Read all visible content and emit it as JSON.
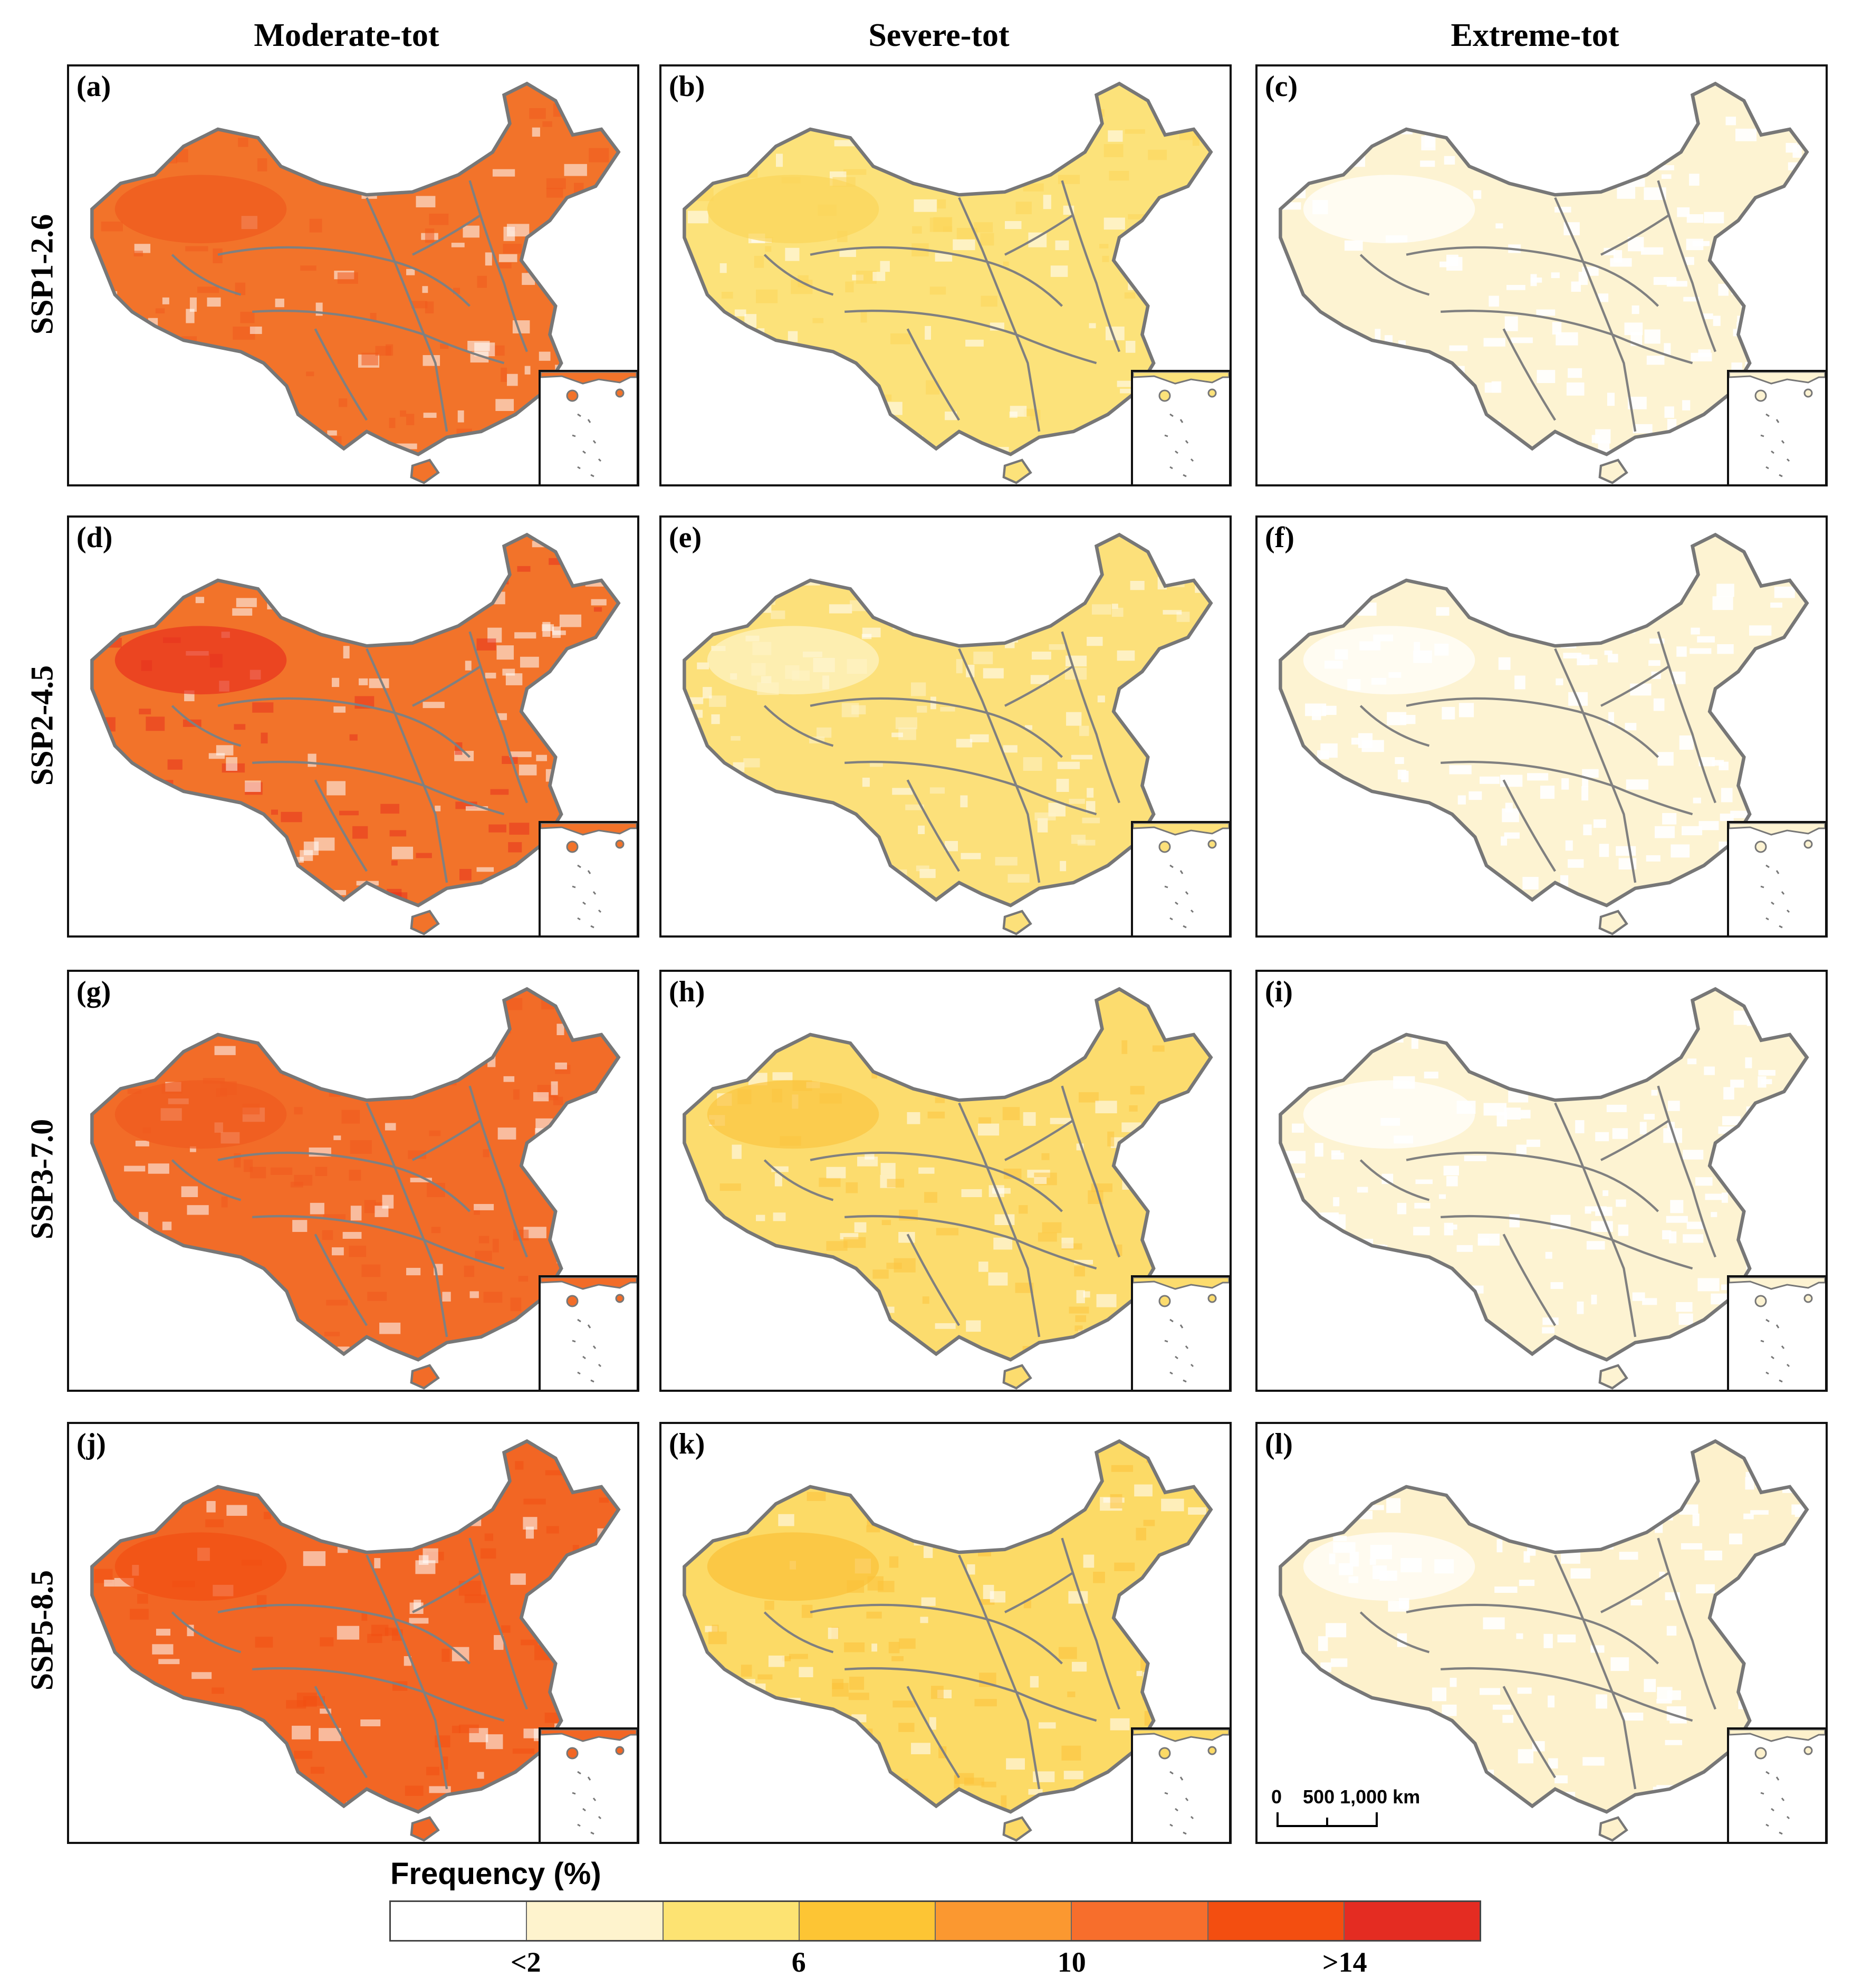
{
  "columns": [
    "Moderate-tot",
    "Severe-tot",
    "Extreme-tot"
  ],
  "rows": [
    "SSP1-2.6",
    "SSP2-4.5",
    "SSP3-7.0",
    "SSP5-8.5"
  ],
  "panels": [
    {
      "label": "(a)",
      "row": 0,
      "col": 0,
      "fill": "#f2732a",
      "hot": "#f05a1e"
    },
    {
      "label": "(b)",
      "row": 0,
      "col": 1,
      "fill": "#fce27a",
      "hot": "#fbd65a"
    },
    {
      "label": "(c)",
      "row": 0,
      "col": 2,
      "fill": "#fdf3d2",
      "hot": "#ffffff"
    },
    {
      "label": "(d)",
      "row": 1,
      "col": 0,
      "fill": "#f2732a",
      "hot": "#e8321e"
    },
    {
      "label": "(e)",
      "row": 1,
      "col": 1,
      "fill": "#fce07a",
      "hot": "#fef3c8"
    },
    {
      "label": "(f)",
      "row": 1,
      "col": 2,
      "fill": "#fdf3d2",
      "hot": "#ffffff"
    },
    {
      "label": "(g)",
      "row": 2,
      "col": 0,
      "fill": "#f26c28",
      "hot": "#f05a1e"
    },
    {
      "label": "(h)",
      "row": 2,
      "col": 1,
      "fill": "#fcdc6e",
      "hot": "#fbc440"
    },
    {
      "label": "(i)",
      "row": 2,
      "col": 2,
      "fill": "#fdf3d2",
      "hot": "#ffffff"
    },
    {
      "label": "(j)",
      "row": 3,
      "col": 0,
      "fill": "#f26624",
      "hot": "#f24e12"
    },
    {
      "label": "(k)",
      "row": 3,
      "col": 1,
      "fill": "#fcda66",
      "hot": "#fbc138"
    },
    {
      "label": "(l)",
      "row": 3,
      "col": 2,
      "fill": "#fdf1cc",
      "hot": "#ffffff"
    }
  ],
  "scale_bar": {
    "text": "0    500 1,000 km"
  },
  "legend": {
    "title": "Frequency (%)",
    "colors": [
      "#ffffff",
      "#fef3cd",
      "#fde372",
      "#fdc534",
      "#fb9830",
      "#f76e2c",
      "#f34e10",
      "#e42c22"
    ],
    "ticks": [
      {
        "label": "<2",
        "at": 1
      },
      {
        "label": "6",
        "at": 3
      },
      {
        "label": "10",
        "at": 5
      },
      {
        "label": ">14",
        "at": 7
      }
    ]
  }
}
